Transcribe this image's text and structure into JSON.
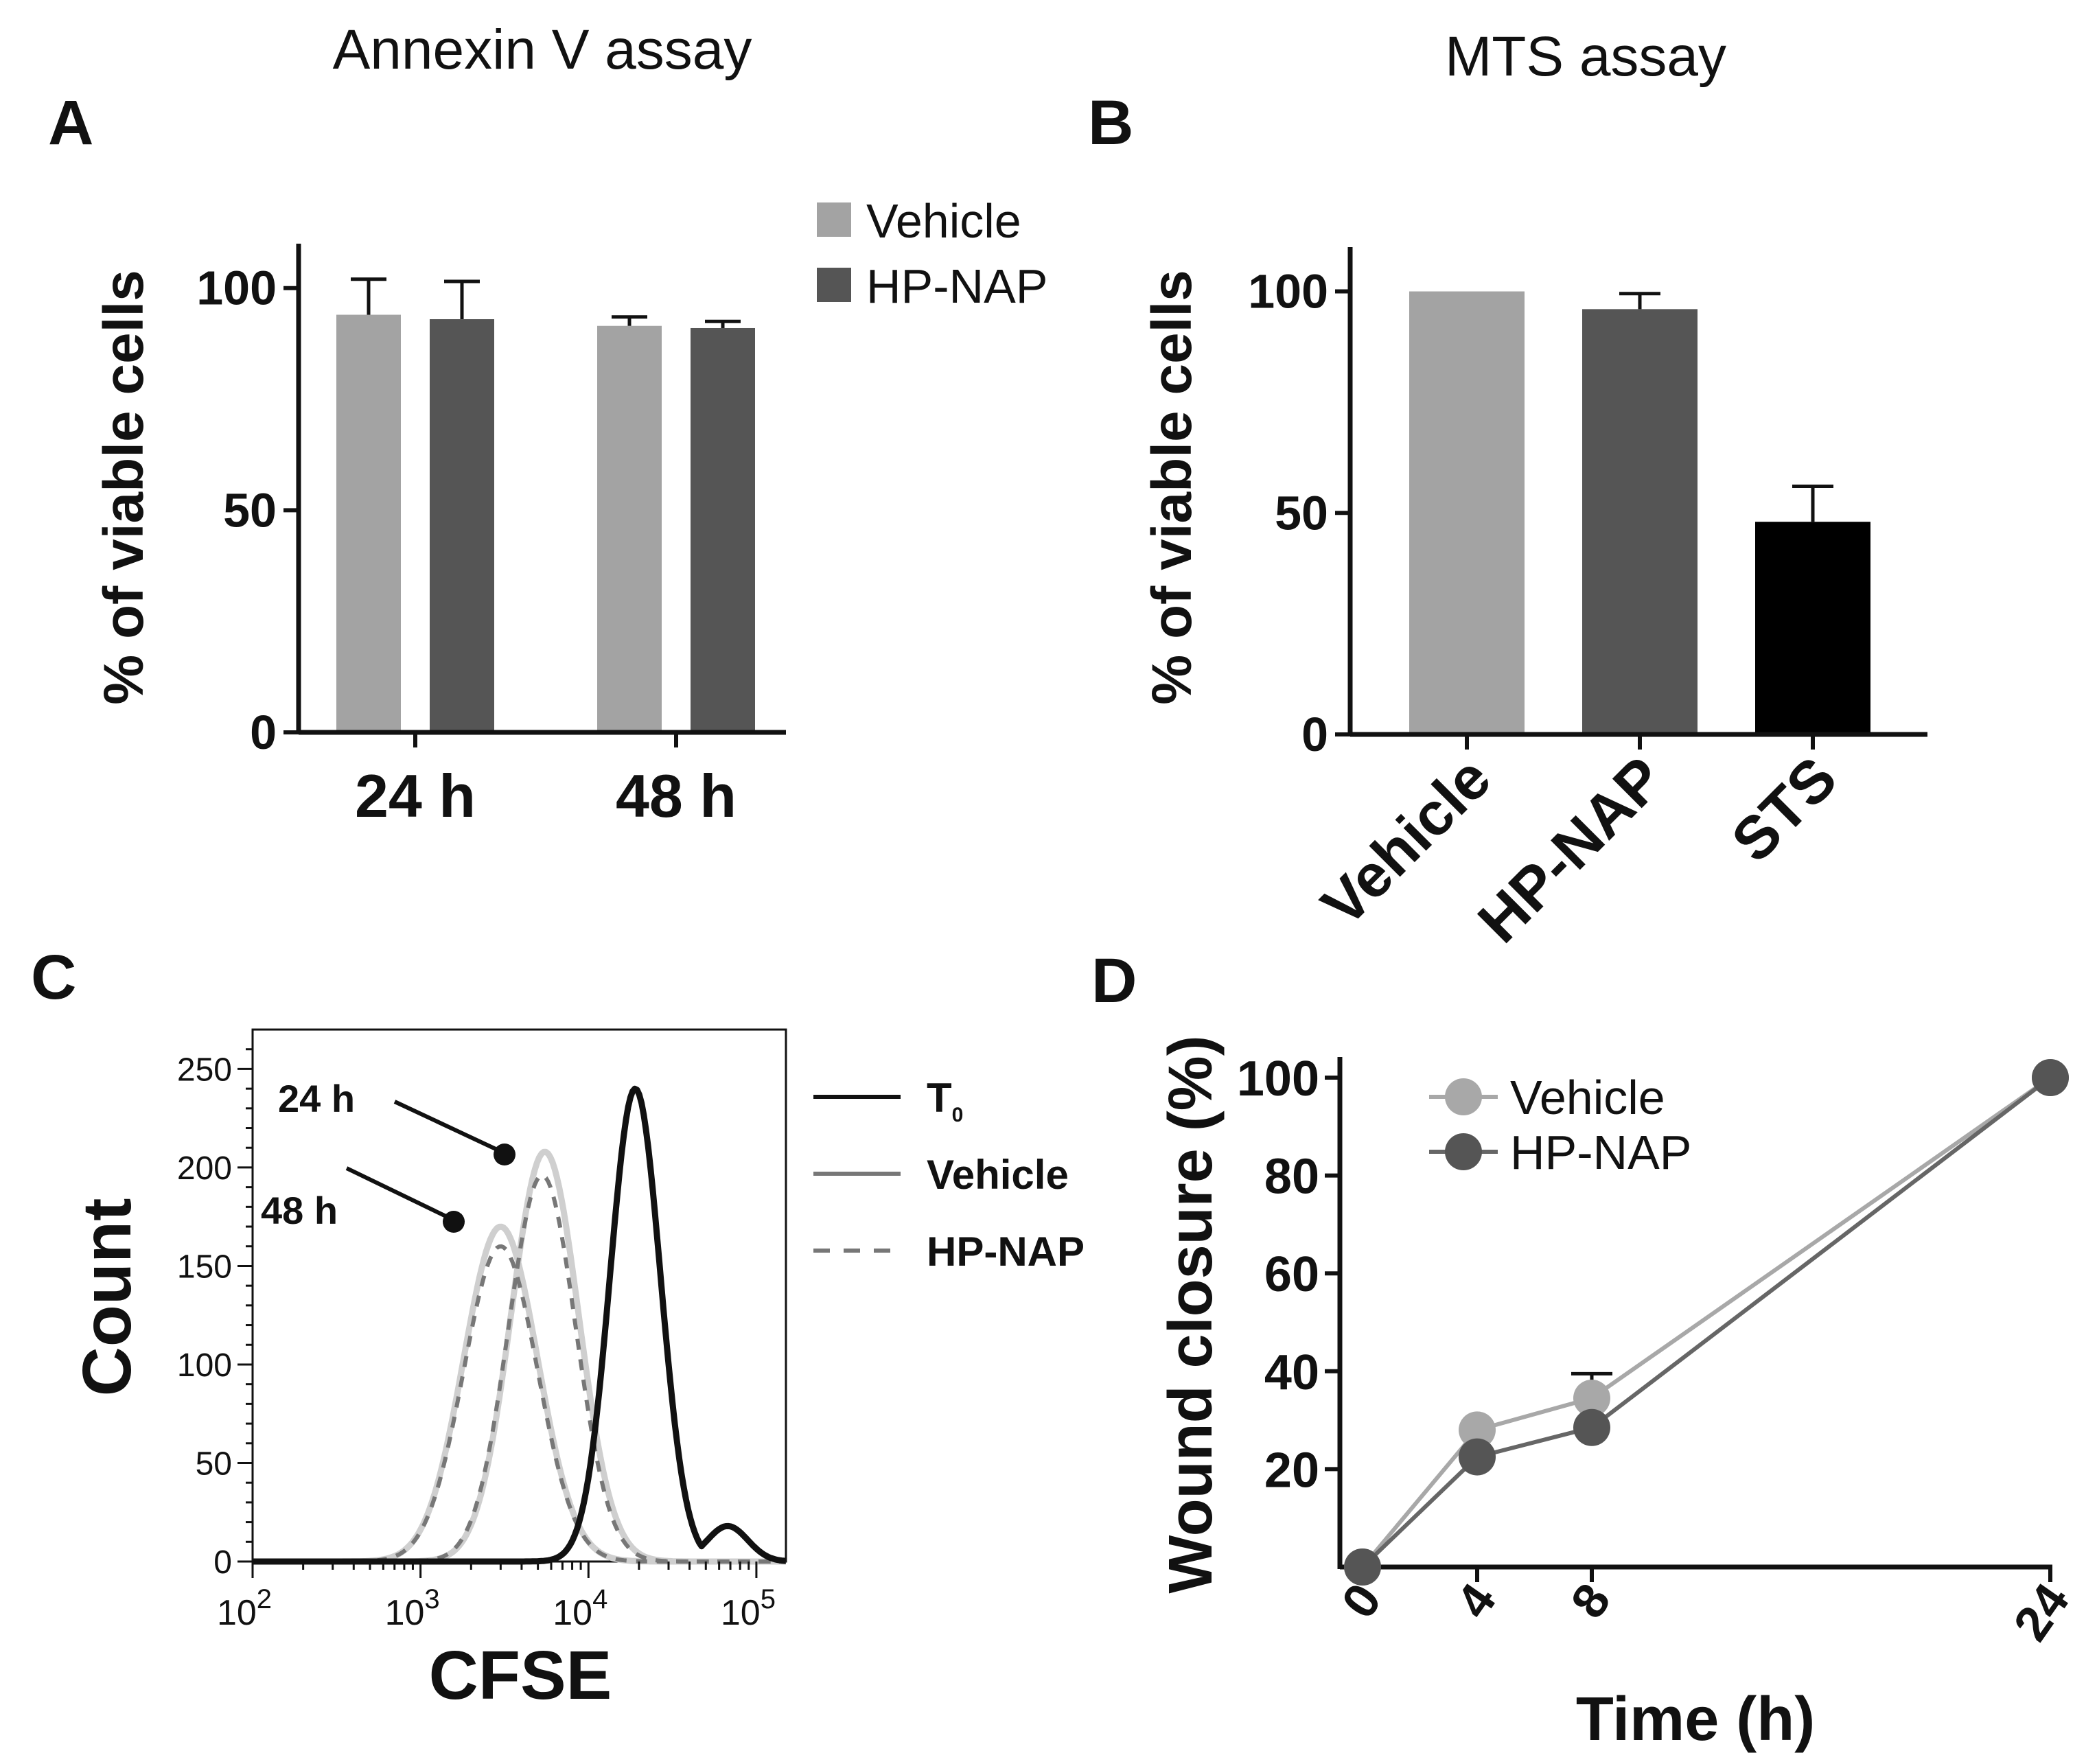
{
  "colors": {
    "vehicle": "#a3a3a3",
    "hp_nap": "#555555",
    "sts": "#000000",
    "axis": "#111111",
    "t0_line": "#111111",
    "vehicle_line": "#cfcfcf",
    "hpnap_line": "#777777",
    "vehicle_marker": "#a8a8a8",
    "hpnap_marker": "#555555"
  },
  "panels": {
    "a": {
      "letter": "A",
      "heading": "Annexin V assay"
    },
    "b": {
      "letter": "B",
      "heading": "MTS assay"
    },
    "c": {
      "letter": "C"
    },
    "d": {
      "letter": "D"
    }
  },
  "chart_data": [
    {
      "id": "a",
      "type": "bar",
      "title": "Annexin V assay",
      "ylabel": "% of viable cells",
      "ylim": [
        0,
        110
      ],
      "yticks": [
        0,
        50,
        100
      ],
      "categories": [
        "24 h",
        "48 h"
      ],
      "series": [
        {
          "name": "Vehicle",
          "values": [
            94,
            91.5
          ],
          "errors": [
            8,
            2
          ]
        },
        {
          "name": "HP-NAP",
          "values": [
            93,
            91
          ],
          "errors": [
            8.5,
            1.5
          ]
        }
      ],
      "legend": "top-right, outside plot"
    },
    {
      "id": "b",
      "type": "bar",
      "title": "MTS assay",
      "ylabel": "% of viable cells",
      "ylim": [
        0,
        110
      ],
      "yticks": [
        0,
        50,
        100
      ],
      "categories": [
        "Vehicle",
        "HP-NAP",
        "STS"
      ],
      "values": [
        100,
        96,
        48
      ],
      "errors": [
        0,
        3.5,
        8
      ]
    },
    {
      "id": "c",
      "type": "line",
      "xscale": "log",
      "xlabel": "CFSE",
      "ylabel": "Count",
      "xlim": [
        100,
        150000
      ],
      "ylim": [
        0,
        270
      ],
      "yticks": [
        0,
        50,
        100,
        150,
        200,
        250
      ],
      "xticks": [
        {
          "base": "10",
          "exp": "2",
          "value": 100
        },
        {
          "base": "10",
          "exp": "3",
          "value": 1000
        },
        {
          "base": "10",
          "exp": "4",
          "value": 10000
        },
        {
          "base": "10",
          "exp": "5",
          "value": 100000
        }
      ],
      "legend": [
        {
          "base": "T",
          "sub": "0",
          "style": "solid-black"
        },
        {
          "base": "Vehicle",
          "sub": "",
          "style": "solid-light-gray"
        },
        {
          "base": "HP-NAP",
          "sub": "",
          "style": "dashed-gray"
        }
      ],
      "annotations": [
        "24 h",
        "48 h"
      ],
      "series": [
        {
          "name": "T0",
          "peak_x": 19000,
          "peak_y": 240,
          "width": 0.15
        },
        {
          "name": "Vehicle 24 h",
          "peak_x": 5500,
          "peak_y": 208,
          "width": 0.2
        },
        {
          "name": "HP-NAP 24 h",
          "peak_x": 5300,
          "peak_y": 196,
          "width": 0.2
        },
        {
          "name": "Vehicle 48 h",
          "peak_x": 3000,
          "peak_y": 170,
          "width": 0.22
        },
        {
          "name": "HP-NAP 48 h",
          "peak_x": 3000,
          "peak_y": 160,
          "width": 0.22
        }
      ]
    },
    {
      "id": "d",
      "type": "line",
      "xlabel": "Time (h)",
      "ylabel": "Wound closure (%)",
      "xlim": [
        0,
        24
      ],
      "ylim": [
        0,
        100
      ],
      "xticks": [
        0,
        4,
        8,
        24
      ],
      "yticks": [
        20,
        40,
        60,
        80,
        100
      ],
      "series": [
        {
          "name": "Vehicle",
          "x": [
            0,
            4,
            8,
            24
          ],
          "y": [
            0,
            28,
            34.5,
            100
          ],
          "errors": [
            0,
            0,
            5,
            0
          ]
        },
        {
          "name": "HP-NAP",
          "x": [
            0,
            4,
            8,
            24
          ],
          "y": [
            0,
            22.5,
            28.5,
            100
          ],
          "errors": [
            0,
            0,
            0,
            0
          ]
        }
      ],
      "legend": "top-left, inside plot"
    }
  ]
}
